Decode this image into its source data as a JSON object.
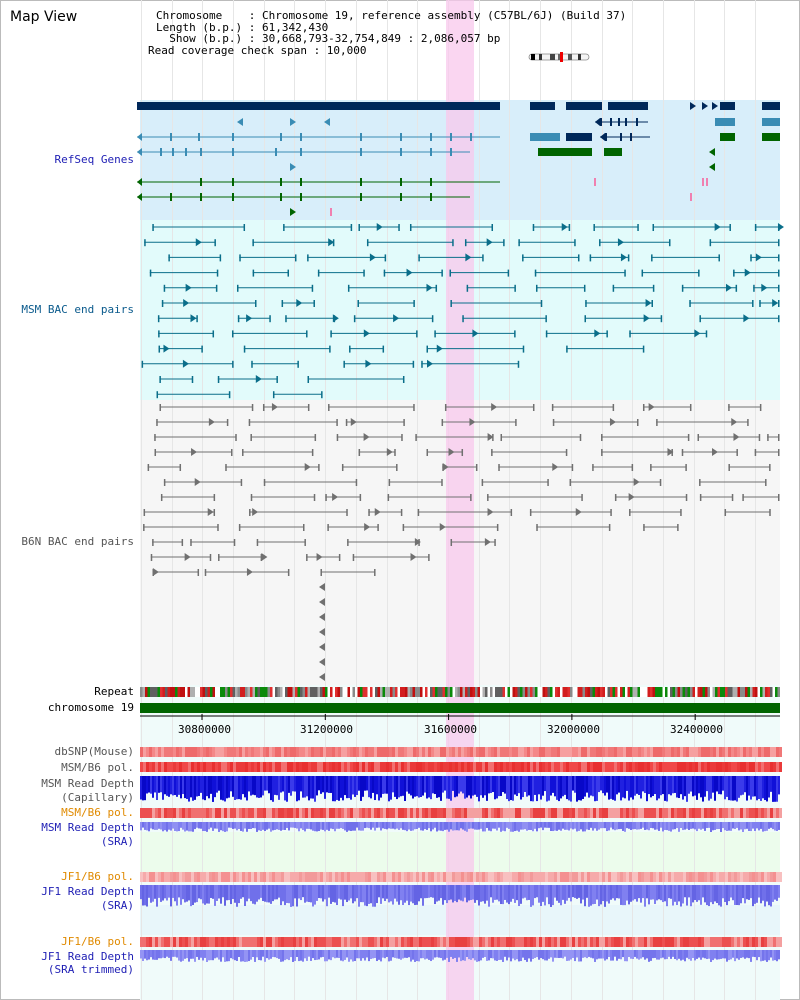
{
  "header": {
    "title": "Map View",
    "chromosome_line": "Chromosome    : Chromosome 19, reference assembly (C57BL/6J) (Build 37)",
    "length_line": "Length (b.p.) : 61,342,430",
    "show_line": "  Show (b.p.) : 30,668,793-32,754,849 : 2,086,057 bp",
    "span_line": "Read coverage check span : 10,000"
  },
  "tracks": {
    "refseq": "RefSeq Genes",
    "msm_bac": "MSM BAC end pairs",
    "b6n_bac": "B6N BAC end pairs",
    "repeat": "Repeat",
    "chromosome": "chromosome 19",
    "dbsnp": "dbSNP(Mouse)",
    "msm_b6_pol_1": "MSM/B6 pol.",
    "msm_depth_cap_1": "MSM Read Depth",
    "msm_depth_cap_2": "(Capillary)",
    "msm_b6_pol_2": "MSM/B6 pol.",
    "msm_depth_sra_1": "MSM Read Depth",
    "msm_depth_sra_2": "(SRA)",
    "jf1_b6_pol_1": "JF1/B6 pol.",
    "jf1_depth_sra_1": "JF1 Read Depth",
    "jf1_depth_sra_2": "(SRA)",
    "jf1_b6_pol_2": "JF1/B6 pol.",
    "jf1_depth_trim_1": "JF1 Read Depth",
    "jf1_depth_trim_2": "(SRA trimmed)"
  },
  "axis": {
    "ticks": [
      "30800000",
      "31200000",
      "31600000",
      "32000000",
      "32400000"
    ]
  },
  "colors": {
    "refseq_bg": "#d8eefa",
    "msm_bg": "#e2fbfb",
    "b6n_bg": "#f6f6f6",
    "highlight": "#f8d8f0",
    "gene_navy": "#00285a",
    "gene_green": "#006400",
    "gene_teal": "#3a8cb4",
    "msm_line": "#0a6e8a",
    "b6n_line": "#707070",
    "chrom": "#006400",
    "depth_blue": "#1a1ad8",
    "depth_lavender": "#8080f0",
    "pol_red": "#e84040"
  },
  "label_colors": {
    "blue": "#1e1eb4",
    "teal": "#0a5a8c",
    "gray": "#555555",
    "orange": "#e08a00",
    "black": "#000000"
  }
}
